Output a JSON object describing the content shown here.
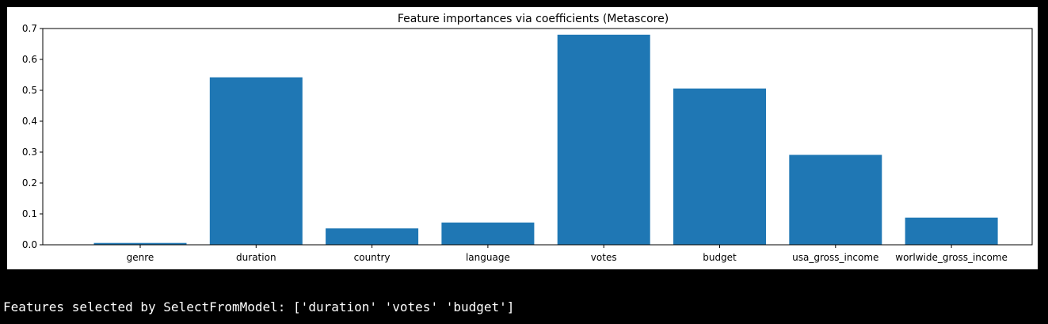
{
  "chart_data": {
    "type": "bar",
    "title": "Feature importances via coefficients (Metascore)",
    "xlabel": "",
    "ylabel": "",
    "categories": [
      "genre",
      "duration",
      "country",
      "language",
      "votes",
      "budget",
      "usa_gross_income",
      "worlwide_gross_income"
    ],
    "values": [
      0.006,
      0.542,
      0.053,
      0.072,
      0.68,
      0.506,
      0.291,
      0.088
    ],
    "ylim": [
      0,
      0.7
    ],
    "yticks": [
      "0.0",
      "0.1",
      "0.2",
      "0.3",
      "0.4",
      "0.5",
      "0.6",
      "0.7"
    ],
    "grid": false,
    "bar_color": "#1f77b4"
  },
  "output": {
    "text": "Features selected by SelectFromModel: ['duration' 'votes' 'budget']"
  }
}
